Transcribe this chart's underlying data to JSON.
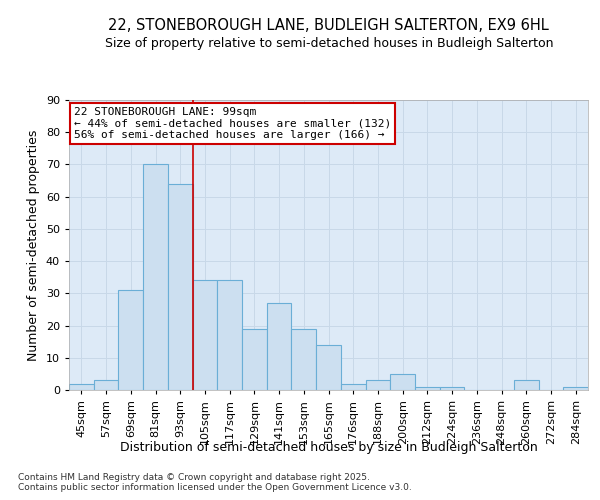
{
  "title_line1": "22, STONEBOROUGH LANE, BUDLEIGH SALTERTON, EX9 6HL",
  "title_line2": "Size of property relative to semi-detached houses in Budleigh Salterton",
  "xlabel": "Distribution of semi-detached houses by size in Budleigh Salterton",
  "ylabel": "Number of semi-detached properties",
  "categories": [
    "45sqm",
    "57sqm",
    "69sqm",
    "81sqm",
    "93sqm",
    "105sqm",
    "117sqm",
    "129sqm",
    "141sqm",
    "153sqm",
    "165sqm",
    "176sqm",
    "188sqm",
    "200sqm",
    "212sqm",
    "224sqm",
    "236sqm",
    "248sqm",
    "260sqm",
    "272sqm",
    "284sqm"
  ],
  "values": [
    2,
    3,
    31,
    70,
    64,
    34,
    34,
    19,
    27,
    19,
    14,
    2,
    3,
    5,
    1,
    1,
    0,
    0,
    3,
    0,
    1
  ],
  "bar_color": "#ccdff0",
  "bar_edge_color": "#6aaed6",
  "annotation_line1": "22 STONEBOROUGH LANE: 99sqm",
  "annotation_line2": "← 44% of semi-detached houses are smaller (132)",
  "annotation_line3": "56% of semi-detached houses are larger (166) →",
  "annotation_box_color": "#ffffff",
  "annotation_box_edge": "#cc0000",
  "vline_x_index": 4.5,
  "vline_color": "#cc0000",
  "ylim": [
    0,
    90
  ],
  "yticks": [
    0,
    10,
    20,
    30,
    40,
    50,
    60,
    70,
    80,
    90
  ],
  "grid_color": "#c8d8e8",
  "background_color": "#ddeaf7",
  "footer_text": "Contains HM Land Registry data © Crown copyright and database right 2025.\nContains public sector information licensed under the Open Government Licence v3.0.",
  "title_fontsize": 10.5,
  "subtitle_fontsize": 9,
  "axis_label_fontsize": 9,
  "tick_fontsize": 8,
  "annotation_fontsize": 8,
  "footer_fontsize": 6.5
}
